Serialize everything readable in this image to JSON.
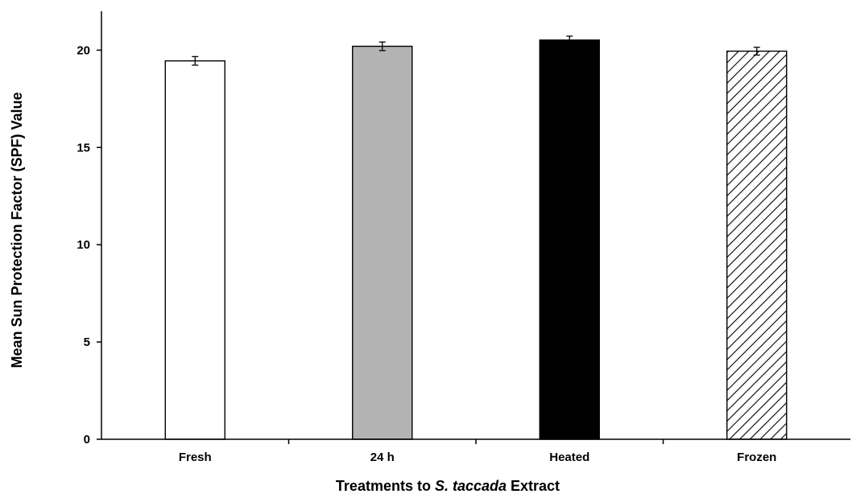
{
  "chart_data": {
    "type": "bar",
    "title": "",
    "xlabel_parts": [
      {
        "text": "Treatments to ",
        "italic": false
      },
      {
        "text": "S. taccada",
        "italic": true
      },
      {
        "text": " Extract",
        "italic": false
      }
    ],
    "ylabel": "Mean Sun Protection Factor (SPF) Value",
    "categories": [
      "Fresh",
      "24 h",
      "Heated",
      "Frozen"
    ],
    "values": [
      19.45,
      20.2,
      20.52,
      19.95
    ],
    "errors": [
      0.22,
      0.22,
      0.2,
      0.2
    ],
    "fills": [
      "white",
      "gray",
      "black",
      "hatched"
    ],
    "colors": {
      "gray": "#b3b3b3",
      "black": "#000000",
      "white": "#ffffff"
    },
    "ylim": [
      0,
      22
    ],
    "yticks": [
      0,
      5,
      10,
      15,
      20
    ],
    "grid": false,
    "legend": "none"
  }
}
